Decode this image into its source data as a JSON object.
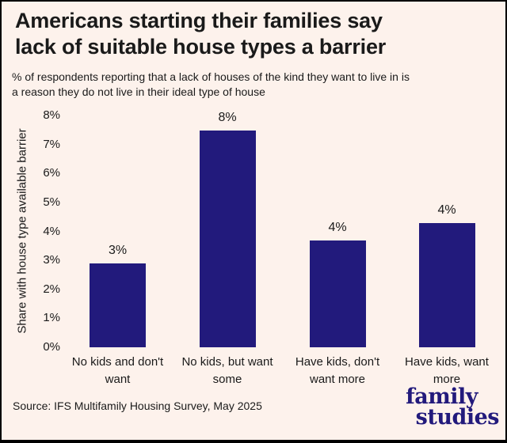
{
  "header": {
    "title_line1": "Americans starting their families say",
    "title_line2": "lack of suitable house types a barrier",
    "subtitle_line1": "% of respondents reporting that a lack of houses of the kind they want to live in is",
    "subtitle_line2": "a reason they do not live in their ideal type of house"
  },
  "chart_data": {
    "type": "bar",
    "title": "Americans starting their families say lack of suitable house types a barrier",
    "subtitle": "% of respondents reporting that a lack of houses of the kind they want to live in is a reason they do not live in their ideal type of house",
    "categories": [
      "No kids and don't want",
      "No kids, but want some",
      "Have kids, don't want more",
      "Have kids, want more"
    ],
    "values": [
      2.9,
      7.5,
      3.7,
      4.3
    ],
    "value_labels": [
      "3%",
      "8%",
      "4%",
      "4%"
    ],
    "xlabel": "",
    "ylabel": "Share with house type available barrier",
    "ylim": [
      0,
      8
    ],
    "ytick_step": 1,
    "yticks": [
      "0%",
      "1%",
      "2%",
      "3%",
      "4%",
      "5%",
      "6%",
      "7%",
      "8%"
    ],
    "grid": false,
    "legend": false
  },
  "footer": {
    "source": "Source: IFS Multifamily Housing Survey, May 2025",
    "logo_line1": "family",
    "logo_line2": "studies"
  },
  "colors": {
    "background": "#fdf2ec",
    "bar": "#221a7c",
    "text": "#1a1a1a",
    "logo": "#221a7c",
    "frame": "#000000"
  }
}
